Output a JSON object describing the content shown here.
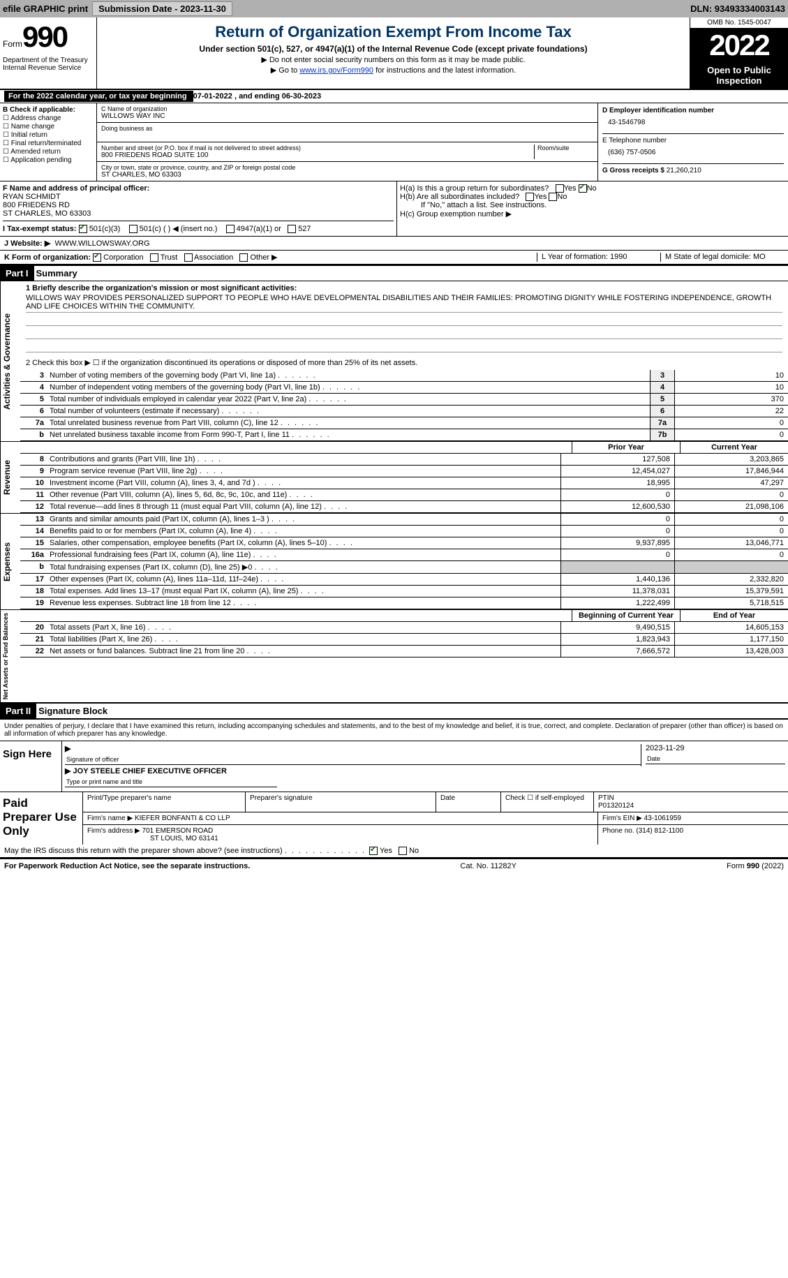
{
  "topbar": {
    "efile": "efile GRAPHIC print",
    "sub_label": "Submission Date - 2023-11-30",
    "dln_label": "DLN: 93493334003143"
  },
  "header": {
    "form_word": "Form",
    "form_num": "990",
    "title": "Return of Organization Exempt From Income Tax",
    "subtitle": "Under section 501(c), 527, or 4947(a)(1) of the Internal Revenue Code (except private foundations)",
    "note1": "▶ Do not enter social security numbers on this form as it may be made public.",
    "note2_pre": "▶ Go to ",
    "note2_link": "www.irs.gov/Form990",
    "note2_post": " for instructions and the latest information.",
    "dept": "Department of the Treasury\nInternal Revenue Service",
    "omb": "OMB No. 1545-0047",
    "year": "2022",
    "open": "Open to Public Inspection"
  },
  "cal_year": {
    "text_a": "For the 2022 calendar year, or tax year beginning ",
    "begin": "07-01-2022",
    "mid": " , and ending ",
    "end": "06-30-2023"
  },
  "sectionB": {
    "title": "B Check if applicable:",
    "items": [
      "Address change",
      "Name change",
      "Initial return",
      "Final return/terminated",
      "Amended return",
      "Application pending"
    ]
  },
  "sectionC": {
    "name_label": "C Name of organization",
    "name": "WILLOWS WAY INC",
    "dba": "Doing business as",
    "addr_label": "Number and street (or P.O. box if mail is not delivered to street address)",
    "room": "Room/suite",
    "addr": "800 FRIEDENS ROAD SUITE 100",
    "city_label": "City or town, state or province, country, and ZIP or foreign postal code",
    "city": "ST CHARLES, MO  63303"
  },
  "sectionD": {
    "ein_label": "D Employer identification number",
    "ein": "43-1546798",
    "tel_label": "E Telephone number",
    "tel": "(636) 757-0506",
    "gross_label": "G Gross receipts $",
    "gross": "21,260,210"
  },
  "sectionF": {
    "label": "F Name and address of principal officer:",
    "name": "RYAN SCHMIDT",
    "addr1": "800 FRIEDENS RD",
    "addr2": "ST CHARLES, MO  63303"
  },
  "sectionH": {
    "ha": "H(a)  Is this a group return for subordinates?",
    "hb": "H(b)  Are all subordinates included?",
    "hb_note": "If \"No,\" attach a list. See instructions.",
    "hc": "H(c)  Group exemption number ▶",
    "yes": "Yes",
    "no": "No"
  },
  "rowI": {
    "label": "I  Tax-exempt status:",
    "opt1": "501(c)(3)",
    "opt2": "501(c) (  ) ◀ (insert no.)",
    "opt3": "4947(a)(1) or",
    "opt4": "527"
  },
  "rowJ": {
    "label": "J  Website: ▶",
    "value": "WWW.WILLOWSWAY.ORG"
  },
  "rowK": {
    "label": "K Form of organization:",
    "opts": [
      "Corporation",
      "Trust",
      "Association",
      "Other ▶"
    ],
    "L": "L Year of formation: 1990",
    "M": "M State of legal domicile: MO"
  },
  "part1": {
    "hdr": "Part I",
    "title": "Summary",
    "line1_label": "1  Briefly describe the organization's mission or most significant activities:",
    "mission": "WILLOWS WAY PROVIDES PERSONALIZED SUPPORT TO PEOPLE WHO HAVE DEVELOPMENTAL DISABILITIES AND THEIR FAMILIES: PROMOTING DIGNITY WHILE FOSTERING INDEPENDENCE, GROWTH AND LIFE CHOICES WITHIN THE COMMUNITY.",
    "line2": "2   Check this box ▶ ☐  if the organization discontinued its operations or disposed of more than 25% of its net assets."
  },
  "governance": {
    "side": "Activities & Governance",
    "rows": [
      {
        "n": "3",
        "d": "Number of voting members of the governing body (Part VI, line 1a)",
        "box": "3",
        "v": "10"
      },
      {
        "n": "4",
        "d": "Number of independent voting members of the governing body (Part VI, line 1b)",
        "box": "4",
        "v": "10"
      },
      {
        "n": "5",
        "d": "Total number of individuals employed in calendar year 2022 (Part V, line 2a)",
        "box": "5",
        "v": "370"
      },
      {
        "n": "6",
        "d": "Total number of volunteers (estimate if necessary)",
        "box": "6",
        "v": "22"
      },
      {
        "n": "7a",
        "d": "Total unrelated business revenue from Part VIII, column (C), line 12",
        "box": "7a",
        "v": "0"
      },
      {
        "n": "b",
        "d": "Net unrelated business taxable income from Form 990-T, Part I, line 11",
        "box": "7b",
        "v": "0"
      }
    ]
  },
  "revenue": {
    "side": "Revenue",
    "prior_hdr": "Prior Year",
    "current_hdr": "Current Year",
    "rows": [
      {
        "n": "8",
        "d": "Contributions and grants (Part VIII, line 1h)",
        "p": "127,508",
        "c": "3,203,865"
      },
      {
        "n": "9",
        "d": "Program service revenue (Part VIII, line 2g)",
        "p": "12,454,027",
        "c": "17,846,944"
      },
      {
        "n": "10",
        "d": "Investment income (Part VIII, column (A), lines 3, 4, and 7d )",
        "p": "18,995",
        "c": "47,297"
      },
      {
        "n": "11",
        "d": "Other revenue (Part VIII, column (A), lines 5, 6d, 8c, 9c, 10c, and 11e)",
        "p": "0",
        "c": "0"
      },
      {
        "n": "12",
        "d": "Total revenue—add lines 8 through 11 (must equal Part VIII, column (A), line 12)",
        "p": "12,600,530",
        "c": "21,098,106"
      }
    ]
  },
  "expenses": {
    "side": "Expenses",
    "rows": [
      {
        "n": "13",
        "d": "Grants and similar amounts paid (Part IX, column (A), lines 1–3 )",
        "p": "0",
        "c": "0"
      },
      {
        "n": "14",
        "d": "Benefits paid to or for members (Part IX, column (A), line 4)",
        "p": "0",
        "c": "0"
      },
      {
        "n": "15",
        "d": "Salaries, other compensation, employee benefits (Part IX, column (A), lines 5–10)",
        "p": "9,937,895",
        "c": "13,046,771"
      },
      {
        "n": "16a",
        "d": "Professional fundraising fees (Part IX, column (A), line 11e)",
        "p": "0",
        "c": "0"
      },
      {
        "n": "b",
        "d": "Total fundraising expenses (Part IX, column (D), line 25) ▶0",
        "p": "",
        "c": "",
        "shade": true
      },
      {
        "n": "17",
        "d": "Other expenses (Part IX, column (A), lines 11a–11d, 11f–24e)",
        "p": "1,440,136",
        "c": "2,332,820"
      },
      {
        "n": "18",
        "d": "Total expenses. Add lines 13–17 (must equal Part IX, column (A), line 25)",
        "p": "11,378,031",
        "c": "15,379,591"
      },
      {
        "n": "19",
        "d": "Revenue less expenses. Subtract line 18 from line 12",
        "p": "1,222,499",
        "c": "5,718,515"
      }
    ]
  },
  "netassets": {
    "side": "Net Assets or Fund Balances",
    "begin_hdr": "Beginning of Current Year",
    "end_hdr": "End of Year",
    "rows": [
      {
        "n": "20",
        "d": "Total assets (Part X, line 16)",
        "p": "9,490,515",
        "c": "14,605,153"
      },
      {
        "n": "21",
        "d": "Total liabilities (Part X, line 26)",
        "p": "1,823,943",
        "c": "1,177,150"
      },
      {
        "n": "22",
        "d": "Net assets or fund balances. Subtract line 21 from line 20",
        "p": "7,666,572",
        "c": "13,428,003"
      }
    ]
  },
  "part2": {
    "hdr": "Part II",
    "title": "Signature Block",
    "decl": "Under penalties of perjury, I declare that I have examined this return, including accompanying schedules and statements, and to the best of my knowledge and belief, it is true, correct, and complete. Declaration of preparer (other than officer) is based on all information of which preparer has any knowledge."
  },
  "sign": {
    "label": "Sign Here",
    "sig_of_officer": "Signature of officer",
    "date": "2023-11-29",
    "date_label": "Date",
    "name": "JOY STEELE  CHIEF EXECUTIVE OFFICER",
    "name_label": "Type or print name and title"
  },
  "prep": {
    "label": "Paid Preparer Use Only",
    "h1": "Print/Type preparer's name",
    "h2": "Preparer's signature",
    "h3": "Date",
    "h4": "Check ☐ if self-employed",
    "h5_label": "PTIN",
    "h5": "P01320124",
    "firm_label": "Firm's name    ▶",
    "firm": "KIEFER BONFANTI & CO LLP",
    "ein_label": "Firm's EIN ▶",
    "ein": "43-1061959",
    "addr_label": "Firm's address ▶",
    "addr1": "701 EMERSON ROAD",
    "addr2": "ST LOUIS, MO  63141",
    "phone_label": "Phone no.",
    "phone": "(314) 812-1100"
  },
  "discuss": "May the IRS discuss this return with the preparer shown above? (see instructions)",
  "footer": {
    "left": "For Paperwork Reduction Act Notice, see the separate instructions.",
    "mid": "Cat. No. 11282Y",
    "right": "Form 990 (2022)"
  }
}
